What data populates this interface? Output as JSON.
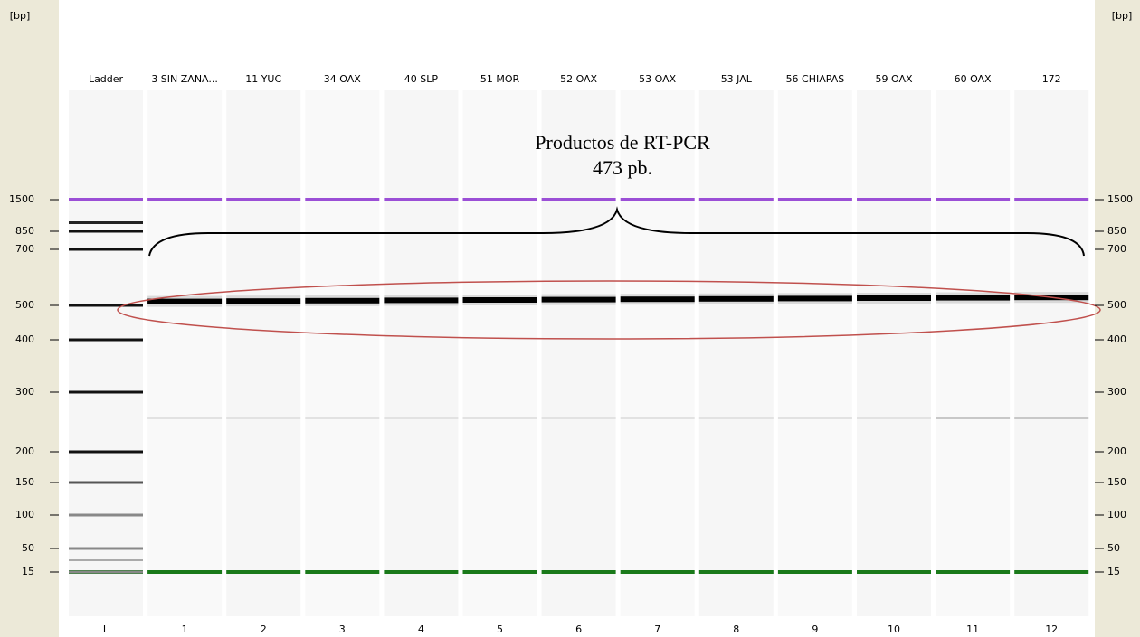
{
  "axis_label": "[bp]",
  "lanes": [
    {
      "name": "Ladder",
      "number": "L"
    },
    {
      "name": "3 SIN ZANA...",
      "number": "1"
    },
    {
      "name": "11 YUC",
      "number": "2"
    },
    {
      "name": "34 OAX",
      "number": "3"
    },
    {
      "name": "40 SLP",
      "number": "4"
    },
    {
      "name": "51 MOR",
      "number": "5"
    },
    {
      "name": "52 OAX",
      "number": "6"
    },
    {
      "name": "53 OAX",
      "number": "7"
    },
    {
      "name": "53 JAL",
      "number": "8"
    },
    {
      "name": "56 CHIAPAS",
      "number": "9"
    },
    {
      "name": "59 OAX",
      "number": "10"
    },
    {
      "name": "60 OAX",
      "number": "11"
    },
    {
      "name": "172",
      "number": "12"
    }
  ],
  "markers": [
    1500,
    850,
    700,
    500,
    400,
    300,
    200,
    150,
    100,
    50,
    15
  ],
  "annotation": [
    "Productos de RT-PCR",
    "473 pb."
  ]
}
